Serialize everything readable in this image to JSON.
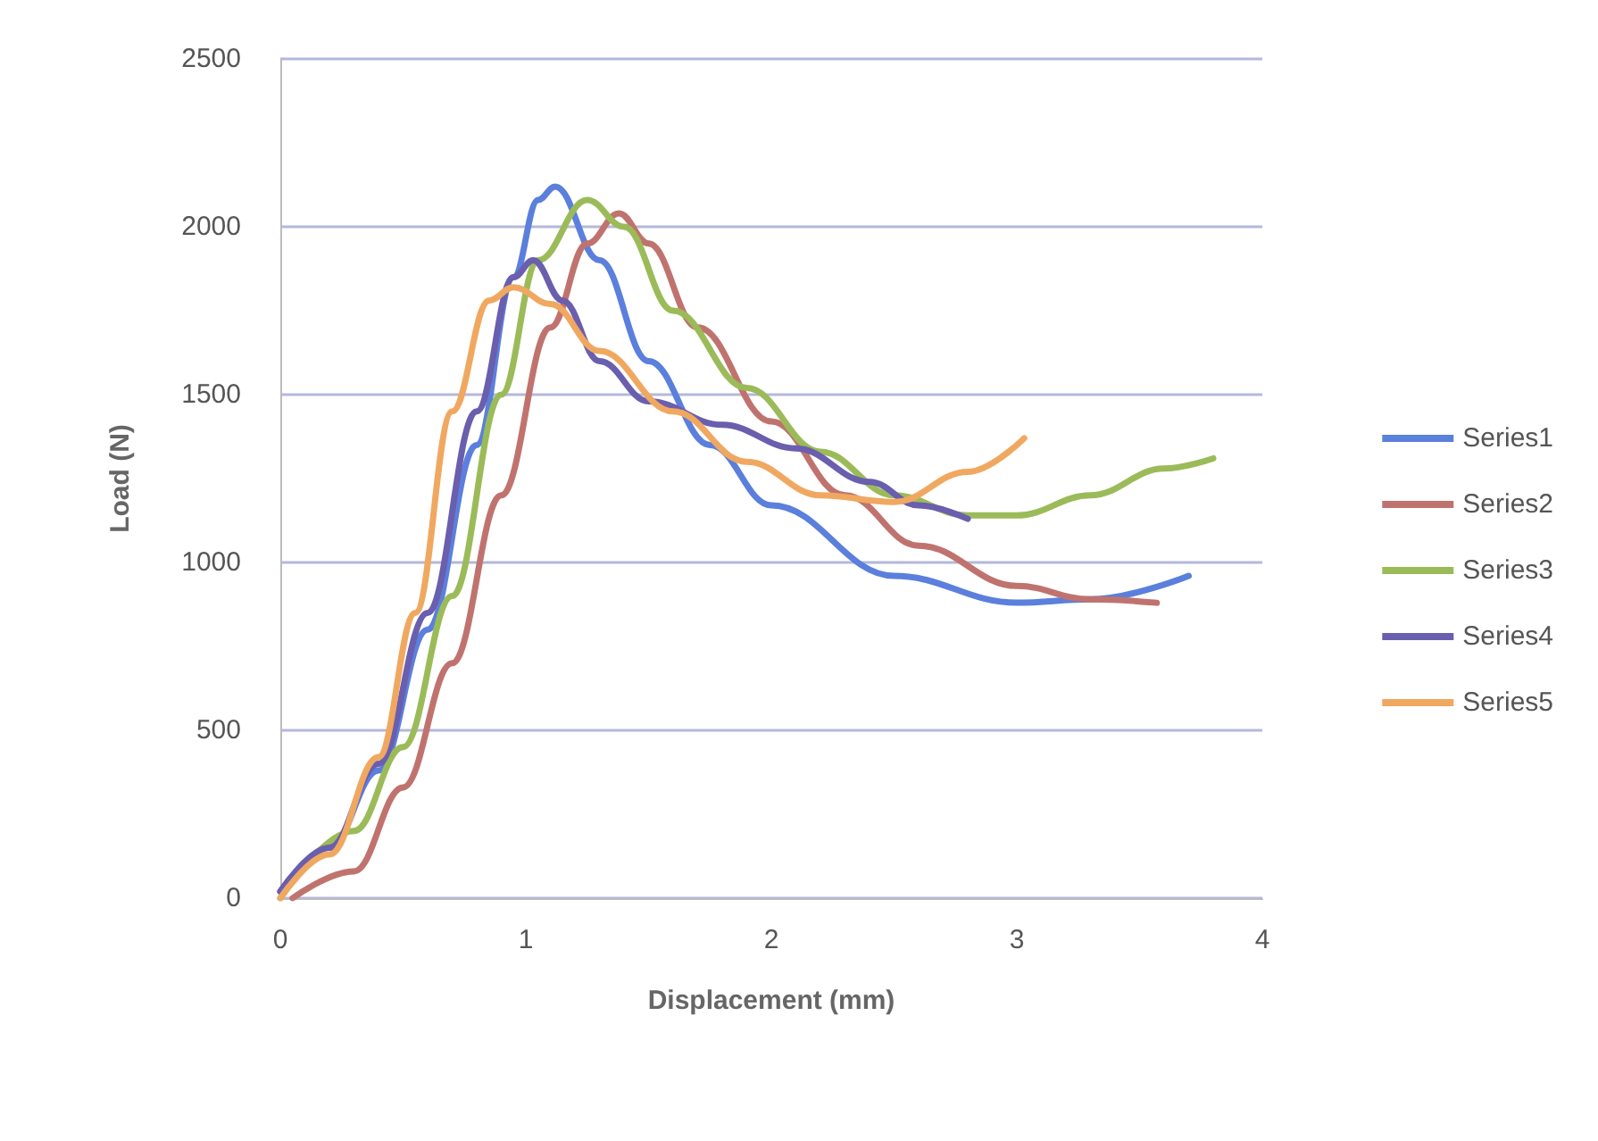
{
  "chart_data": {
    "type": "line",
    "xlabel": "Displacement (mm)",
    "ylabel": "Load (N)",
    "xlim": [
      0,
      4
    ],
    "xticks": [
      0,
      1,
      2,
      3,
      4
    ],
    "ylim": [
      0,
      2500
    ],
    "yticks": [
      0,
      500,
      1000,
      1500,
      2000,
      2500
    ],
    "grid": "y",
    "legend": "right",
    "marker": "none",
    "line_style": "solid",
    "series": [
      {
        "name": "Series1",
        "color": "#5b7fdc",
        "x": [
          0,
          0.2,
          0.4,
          0.6,
          0.8,
          0.95,
          1.05,
          1.12,
          1.3,
          1.5,
          1.75,
          2,
          2.5,
          3,
          3.3,
          3.7
        ],
        "values": [
          20,
          150,
          380,
          800,
          1350,
          1850,
          2080,
          2120,
          1900,
          1600,
          1350,
          1170,
          960,
          880,
          890,
          960
        ]
      },
      {
        "name": "Series2",
        "color": "#c0736e",
        "x": [
          0.05,
          0.3,
          0.5,
          0.7,
          0.9,
          1.1,
          1.25,
          1.38,
          1.5,
          1.7,
          2,
          2.3,
          2.6,
          3,
          3.3,
          3.57
        ],
        "values": [
          0,
          80,
          330,
          700,
          1200,
          1700,
          1950,
          2040,
          1950,
          1700,
          1420,
          1200,
          1050,
          930,
          890,
          880
        ]
      },
      {
        "name": "Series3",
        "color": "#9bbb59",
        "x": [
          0,
          0.3,
          0.5,
          0.7,
          0.9,
          1.05,
          1.25,
          1.4,
          1.6,
          1.9,
          2.2,
          2.5,
          2.8,
          3,
          3.3,
          3.6,
          3.8
        ],
        "values": [
          0,
          200,
          450,
          900,
          1500,
          1900,
          2080,
          2000,
          1750,
          1520,
          1330,
          1200,
          1140,
          1140,
          1200,
          1280,
          1310
        ]
      },
      {
        "name": "Series4",
        "color": "#6a5eae",
        "x": [
          0,
          0.2,
          0.4,
          0.6,
          0.8,
          0.95,
          1.03,
          1.15,
          1.3,
          1.5,
          1.8,
          2.1,
          2.4,
          2.6,
          2.8
        ],
        "values": [
          20,
          150,
          400,
          850,
          1450,
          1850,
          1900,
          1780,
          1600,
          1480,
          1410,
          1340,
          1240,
          1170,
          1130
        ]
      },
      {
        "name": "Series5",
        "color": "#f0a860",
        "x": [
          0,
          0.2,
          0.4,
          0.55,
          0.7,
          0.85,
          0.95,
          1.1,
          1.3,
          1.6,
          1.9,
          2.2,
          2.5,
          2.8,
          3.03
        ],
        "values": [
          0,
          130,
          420,
          850,
          1450,
          1780,
          1820,
          1770,
          1630,
          1450,
          1300,
          1200,
          1180,
          1270,
          1370
        ]
      }
    ]
  }
}
